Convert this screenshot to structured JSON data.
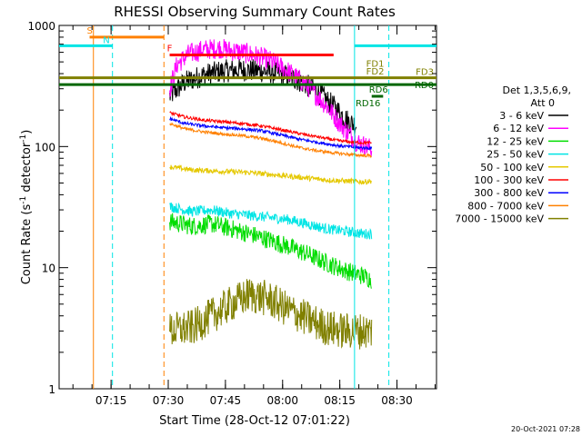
{
  "chart_data": {
    "type": "line",
    "title": "RHESSI Observing Summary Count Rates",
    "xlabel": "Start Time (28-Oct-12 07:01:22)",
    "ylabel": "Count Rate (s",
    "ylabel_sup": "-1",
    "ylabel_tail": " detector",
    "ylabel_end": ")",
    "yscale": "log",
    "ylim": [
      1,
      1000
    ],
    "xlim_min": [
      0,
      99
    ],
    "y_ticks": [
      {
        "value": 1,
        "label": "1"
      },
      {
        "value": 10,
        "label": "10"
      },
      {
        "value": 100,
        "label": "100"
      },
      {
        "value": 1000,
        "label": "1000"
      }
    ],
    "x_ticks": [
      {
        "t": 13.63,
        "label": "07:15"
      },
      {
        "t": 28.63,
        "label": "07:30"
      },
      {
        "t": 43.63,
        "label": "07:45"
      },
      {
        "t": 58.63,
        "label": "08:00"
      },
      {
        "t": 73.63,
        "label": "08:15"
      },
      {
        "t": 88.63,
        "label": "08:30"
      }
    ],
    "legend": {
      "placement": "right",
      "header": "Det 1,3,5,6,9,",
      "subheader": "Att 0",
      "items": [
        {
          "label": "3 - 6 keV",
          "color": "#000000"
        },
        {
          "label": "6 - 12 keV",
          "color": "#ff00ff"
        },
        {
          "label": "12 - 25 keV",
          "color": "#00dd00"
        },
        {
          "label": "25 - 50 keV",
          "color": "#00e5e5"
        },
        {
          "label": "50 - 100 keV",
          "color": "#e5c800"
        },
        {
          "label": "100 - 300 keV",
          "color": "#ff0000"
        },
        {
          "label": "300 - 800 keV",
          "color": "#0000ff"
        },
        {
          "label": "800 - 7000 keV",
          "color": "#ff8000"
        },
        {
          "label": "7000 - 15000 keV",
          "color": "#808000"
        }
      ]
    },
    "series": [
      {
        "name": "3 - 6 keV",
        "color": "#000000",
        "x": [
          29,
          33,
          38,
          43,
          48,
          53,
          58,
          63,
          68,
          73,
          76,
          78
        ],
        "y": [
          260,
          340,
          390,
          420,
          430,
          420,
          400,
          350,
          280,
          200,
          160,
          150
        ],
        "noise": 0.22
      },
      {
        "name": "6 - 12 keV",
        "color": "#ff00ff",
        "x": [
          29,
          31,
          34,
          38,
          42,
          45,
          48,
          52,
          56,
          60,
          65,
          70,
          74,
          78,
          82
        ],
        "y": [
          300,
          480,
          580,
          630,
          650,
          620,
          600,
          560,
          500,
          420,
          320,
          220,
          150,
          110,
          95
        ],
        "noise": 0.2
      },
      {
        "name": "12 - 25 keV",
        "color": "#00dd00",
        "x": [
          29,
          35,
          40,
          45,
          50,
          55,
          60,
          65,
          70,
          75,
          80,
          82
        ],
        "y": [
          24,
          22,
          23,
          21,
          19,
          17,
          15,
          13,
          11,
          9.5,
          8.5,
          8
        ],
        "noise": 0.18
      },
      {
        "name": "25 - 50 keV",
        "color": "#00e5e5",
        "x": [
          29,
          35,
          40,
          45,
          50,
          55,
          60,
          65,
          70,
          75,
          80,
          82
        ],
        "y": [
          32,
          29,
          30,
          28,
          27,
          26,
          25,
          23,
          21,
          20,
          19,
          19
        ],
        "noise": 0.1
      },
      {
        "name": "50 - 100 keV",
        "color": "#e5c800",
        "x": [
          29,
          35,
          40,
          45,
          50,
          55,
          60,
          65,
          70,
          75,
          80,
          82
        ],
        "y": [
          68,
          64,
          63,
          62,
          61,
          59,
          57,
          55,
          53,
          52,
          51,
          52
        ],
        "noise": 0.05
      },
      {
        "name": "100 - 300 keV",
        "color": "#ff0000",
        "x": [
          29,
          33,
          38,
          43,
          48,
          53,
          58,
          63,
          68,
          73,
          78,
          82
        ],
        "y": [
          190,
          175,
          165,
          160,
          155,
          148,
          138,
          128,
          120,
          112,
          108,
          107
        ],
        "noise": 0.03
      },
      {
        "name": "300 - 800 keV",
        "color": "#0000ff",
        "x": [
          29,
          33,
          38,
          43,
          48,
          53,
          58,
          63,
          68,
          73,
          78,
          82
        ],
        "y": [
          170,
          155,
          148,
          143,
          140,
          135,
          125,
          115,
          108,
          102,
          98,
          97
        ],
        "noise": 0.03
      },
      {
        "name": "800 - 7000 keV",
        "color": "#ff8000",
        "x": [
          29,
          33,
          38,
          43,
          48,
          53,
          58,
          63,
          68,
          73,
          78,
          82
        ],
        "y": [
          155,
          140,
          132,
          127,
          123,
          117,
          108,
          98,
          92,
          88,
          85,
          84
        ],
        "noise": 0.03
      },
      {
        "name": "7000 - 15000 keV",
        "color": "#808000",
        "x": [
          29,
          35,
          40,
          45,
          50,
          55,
          60,
          65,
          70,
          75,
          80,
          82
        ],
        "y": [
          3,
          3.2,
          4,
          5,
          6,
          5.5,
          4.5,
          3.8,
          3.2,
          3,
          3,
          3
        ],
        "noise": 0.35
      }
    ],
    "verticals": [
      {
        "t": 9,
        "color": "#ff8000",
        "dash": false
      },
      {
        "t": 14,
        "color": "#00e5e5",
        "dash": true
      },
      {
        "t": 27.5,
        "color": "#ff8000",
        "dash": true
      },
      {
        "t": 77.5,
        "color": "#00e5e5",
        "dash": false
      },
      {
        "t": 86.5,
        "color": "#00e5e5",
        "dash": true
      }
    ],
    "bars": [
      {
        "label": "S",
        "color": "#ff8000",
        "t0": 8,
        "t1": 27.5,
        "y": 800,
        "label_pos": "start"
      },
      {
        "label": "N",
        "color": "#00e5e5",
        "t0": 0,
        "t1": 14,
        "y": 680,
        "label_pos": "end"
      },
      {
        "label": "N",
        "color": "#00e5e5",
        "t0": 77.5,
        "t1": 99,
        "y": 680,
        "label_pos": "none"
      },
      {
        "label": "F",
        "color": "#ff0000",
        "t0": 29,
        "t1": 72,
        "y": 570,
        "label_pos": "start"
      },
      {
        "label": "FD3",
        "color": "#808000",
        "t0": 0,
        "t1": 99,
        "y": 370,
        "label_pos": "end"
      },
      {
        "label": "RD0",
        "color": "#006600",
        "t0": 0,
        "t1": 99,
        "y": 325,
        "label_pos": "end"
      },
      {
        "label": "RD6",
        "color": "#006600",
        "t0": 82,
        "t1": 85,
        "y": 260,
        "label_pos": "start"
      },
      {
        "label": "RD16",
        "color": "#006600",
        "t0": 85,
        "t1": 85,
        "y": 230,
        "label_pos": "start"
      },
      {
        "label": "FD1",
        "color": "#808000",
        "t0": 86,
        "t1": 86,
        "y": 490,
        "label_pos": "start"
      },
      {
        "label": "FD2",
        "color": "#808000",
        "t0": 86,
        "t1": 86,
        "y": 420,
        "label_pos": "start"
      }
    ]
  },
  "footer": {
    "timestamp": "20-Oct-2021 07:28"
  }
}
